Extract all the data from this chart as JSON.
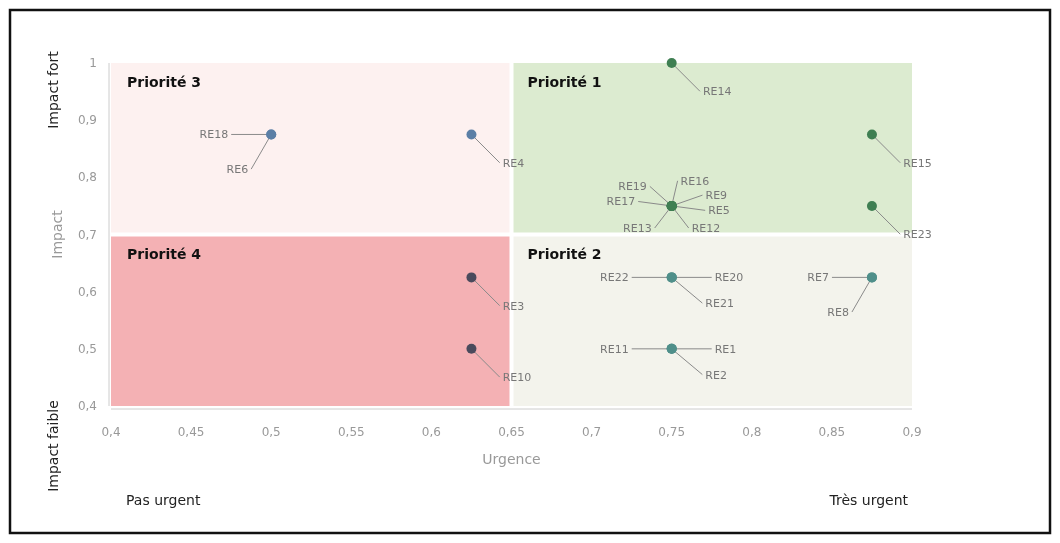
{
  "chart_data": {
    "type": "scatter",
    "xlabel": "Urgence",
    "ylabel": "Impact",
    "xlim": [
      0.4,
      0.9
    ],
    "ylim": [
      0.4,
      1
    ],
    "xticks": [
      {
        "value": 0.4,
        "label": "0,4"
      },
      {
        "value": 0.45,
        "label": "0,45"
      },
      {
        "value": 0.5,
        "label": "0,5"
      },
      {
        "value": 0.55,
        "label": "0,55"
      },
      {
        "value": 0.6,
        "label": "0,6"
      },
      {
        "value": 0.65,
        "label": "0,65"
      },
      {
        "value": 0.7,
        "label": "0,7"
      },
      {
        "value": 0.75,
        "label": "0,75"
      },
      {
        "value": 0.8,
        "label": "0,8"
      },
      {
        "value": 0.85,
        "label": "0,85"
      },
      {
        "value": 0.9,
        "label": "0,9"
      }
    ],
    "yticks": [
      {
        "value": 0.4,
        "label": "0,4"
      },
      {
        "value": 0.5,
        "label": "0,5"
      },
      {
        "value": 0.6,
        "label": "0,6"
      },
      {
        "value": 0.7,
        "label": "0,7"
      },
      {
        "value": 0.8,
        "label": "0,8"
      },
      {
        "value": 0.9,
        "label": "0,9"
      },
      1
    ],
    "grid": false,
    "marker": "circle",
    "ref_lines": [
      {
        "axis": "x",
        "value": 0.65,
        "color": "#ffffff"
      },
      {
        "axis": "y",
        "value": 0.7,
        "color": "#ffffff"
      }
    ],
    "series": [
      {
        "color": "#5b7fa6",
        "x": [
          0.5,
          0.5,
          0.625
        ],
        "values": [
          0.875,
          0.875,
          0.875
        ],
        "value_labels": [
          "RE18",
          "RE6",
          "RE4"
        ]
      },
      {
        "color": "#3f7f52",
        "x": [
          0.75,
          0.875,
          0.875,
          0.75,
          0.75,
          0.75,
          0.75,
          0.75,
          0.75,
          0.75
        ],
        "values": [
          1,
          0.875,
          0.75,
          0.75,
          0.75,
          0.75,
          0.75,
          0.75,
          0.75,
          0.75
        ],
        "value_labels": [
          "RE14",
          "RE15",
          "RE23",
          "RE17",
          "RE19",
          "RE16",
          "RE9",
          "RE5",
          "RE12",
          "RE13"
        ]
      },
      {
        "color": "#4a4a5c",
        "x": [
          0.625,
          0.625
        ],
        "values": [
          0.625,
          0.5
        ],
        "value_labels": [
          "RE3",
          "RE10"
        ]
      },
      {
        "color": "#4f8f8a",
        "x": [
          0.75,
          0.75,
          0.75,
          0.875,
          0.875,
          0.75,
          0.75,
          0.75
        ],
        "values": [
          0.625,
          0.625,
          0.625,
          0.625,
          0.625,
          0.5,
          0.5,
          0.5
        ],
        "value_labels": [
          "RE22",
          "RE20",
          "RE21",
          "RE7",
          "RE8",
          "RE11",
          "RE1",
          "RE2"
        ]
      }
    ],
    "annotations": [
      "Impact fort",
      "Impact faible",
      "Pas urgent",
      "Très urgent",
      "Priorité 3",
      "Priorité 1",
      "Priorité 4",
      "Priorité 2"
    ]
  }
}
